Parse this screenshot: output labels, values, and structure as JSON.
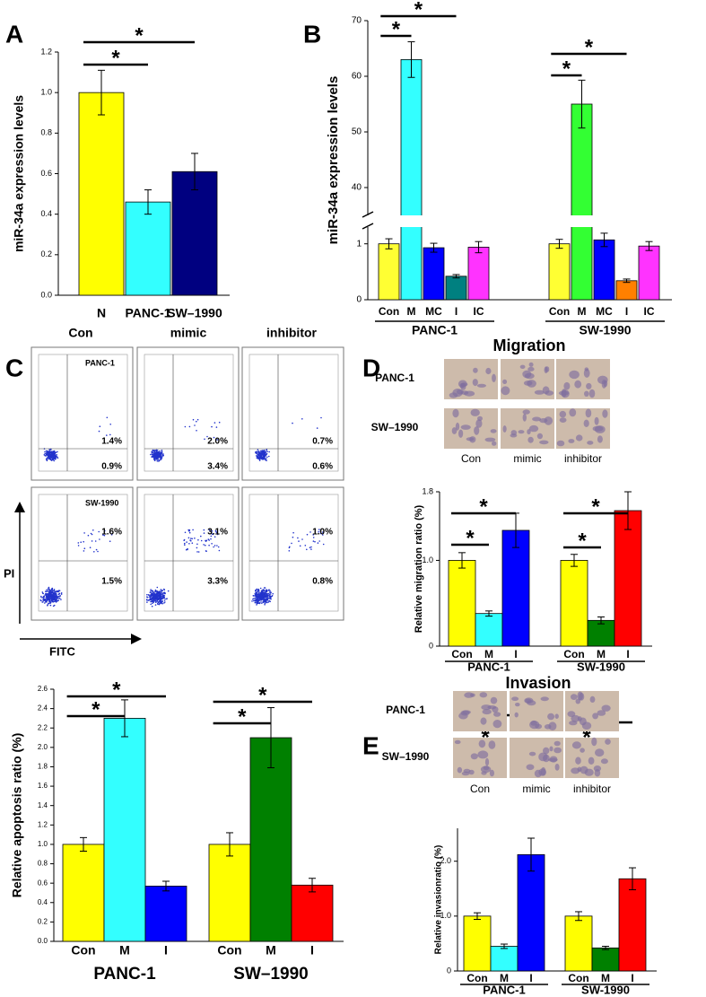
{
  "chart_data": [
    {
      "type": "bar",
      "label": "A",
      "ylabel": "miR-34a expression levels",
      "categories": [
        "N",
        "PANC-1",
        "SW–1990"
      ],
      "values": [
        1.0,
        0.46,
        0.61
      ],
      "errors": [
        0.11,
        0.06,
        0.09
      ],
      "colors": [
        "#ffff00",
        "#33ffff",
        "#000080"
      ],
      "ylim": [
        0,
        1.2
      ],
      "yticks": [
        {
          "value": 0,
          "label": "0.0"
        },
        0.2,
        0.4,
        0.6,
        0.8,
        {
          "value": 1,
          "label": "1.0"
        },
        1.2
      ],
      "brackets": [
        {
          "label": "*",
          "from": "N",
          "to": "PANC-1"
        },
        {
          "label": "*",
          "from": "N",
          "to": "SW–1990"
        }
      ]
    },
    {
      "type": "grouped_bar",
      "label": "B",
      "ylabel": "miR-34a expression levels",
      "categories": [
        "Con",
        "M",
        "MC",
        "I",
        "IC"
      ],
      "series": [
        {
          "name": "PANC-1",
          "values": [
            1.0,
            63,
            0.93,
            0.42,
            0.94
          ],
          "errors": [
            0.09,
            3.2,
            0.08,
            0.03,
            0.1
          ],
          "colors": [
            "#ffff33",
            "#33ffff",
            "#0000ff",
            "#008080",
            "#ff33ff"
          ]
        },
        {
          "name": "SW-1990",
          "values": [
            1.0,
            55,
            1.07,
            0.34,
            0.96
          ],
          "errors": [
            0.08,
            4.3,
            0.12,
            0.03,
            0.08
          ],
          "colors": [
            "#ffff33",
            "#33ff33",
            "#0000ff",
            "#ff8000",
            "#ff33ff"
          ]
        }
      ],
      "ylim": [
        0,
        70
      ],
      "ybreak": [
        1.3,
        35
      ],
      "yticks": [
        0,
        1,
        40,
        50,
        60,
        70
      ],
      "brackets": [
        {
          "label": "*",
          "group": "PANC-1",
          "from": "Con",
          "to": "M"
        },
        {
          "label": "*",
          "group": "PANC-1",
          "from": "Con",
          "to": "I"
        },
        {
          "label": "*",
          "group": "SW-1990",
          "from": "Con",
          "to": "M"
        },
        {
          "label": "*",
          "group": "SW-1990",
          "from": "Con",
          "to": "I"
        }
      ]
    },
    {
      "type": "grouped_bar",
      "label": "C",
      "ylabel": "Relative apoptosis ratio (%)",
      "categories": [
        "Con",
        "M",
        "I"
      ],
      "series": [
        {
          "name": "PANC-1",
          "values": [
            1.0,
            2.3,
            0.57
          ],
          "errors": [
            0.07,
            0.19,
            0.05
          ],
          "colors": [
            "#ffff00",
            "#33ffff",
            "#0000ff"
          ]
        },
        {
          "name": "SW–1990",
          "values": [
            1.0,
            2.1,
            0.58
          ],
          "errors": [
            0.12,
            0.31,
            0.07
          ],
          "colors": [
            "#ffff00",
            "#008000",
            "#ff0000"
          ]
        }
      ],
      "ylim": [
        0,
        2.6
      ],
      "yticks": [
        {
          "value": 0,
          "label": "0.0"
        },
        0.2,
        0.4,
        0.6,
        0.8,
        {
          "value": 1,
          "label": "1.0"
        },
        1.2,
        1.4,
        1.6,
        1.8,
        {
          "value": 2,
          "label": "2.0"
        },
        2.2,
        2.4,
        2.6
      ],
      "brackets": [
        {
          "label": "*",
          "group": "PANC-1",
          "from": "Con",
          "to": "M"
        },
        {
          "label": "*",
          "group": "PANC-1",
          "from": "Con",
          "to": "I"
        },
        {
          "label": "*",
          "group": "SW–1990",
          "from": "Con",
          "to": "M"
        },
        {
          "label": "*",
          "group": "SW–1990",
          "from": "Con",
          "to": "I"
        }
      ],
      "flow_cytometry": {
        "columns": [
          "Con",
          "mimic",
          "inhibitor"
        ],
        "y_axis": "PI",
        "x_axis": "FITC",
        "rows": [
          {
            "label": "PANC-1",
            "cells": [
              {
                "upper": "1.4%",
                "lower": "0.9%"
              },
              {
                "upper": "2.0%",
                "lower": "3.4%"
              },
              {
                "upper": "0.7%",
                "lower": "0.6%"
              }
            ]
          },
          {
            "label": "SW-1990",
            "cells": [
              {
                "upper": "1.6%",
                "lower": "1.5%"
              },
              {
                "upper": "3.1%",
                "lower": "3.3%"
              },
              {
                "upper": "1.0%",
                "lower": "0.8%"
              }
            ]
          }
        ]
      }
    },
    {
      "type": "grouped_bar",
      "label": "D",
      "title": "Migration",
      "ylabel": "Relative migration ratio (%)",
      "categories": [
        "Con",
        "M",
        "I"
      ],
      "series": [
        {
          "name": "PANC-1",
          "values": [
            1.0,
            0.38,
            1.35
          ],
          "errors": [
            0.09,
            0.03,
            0.2
          ],
          "colors": [
            "#ffff00",
            "#33ffff",
            "#0000ff"
          ]
        },
        {
          "name": "SW-1990",
          "values": [
            1.0,
            0.3,
            1.58
          ],
          "errors": [
            0.07,
            0.04,
            0.22
          ],
          "colors": [
            "#ffff00",
            "#008000",
            "#ff0000"
          ]
        }
      ],
      "ylim": [
        0,
        1.8
      ],
      "yticks": [
        0,
        {
          "value": 1,
          "label": "1.0"
        },
        1.8
      ],
      "brackets": [
        {
          "label": "*",
          "group": "PANC-1",
          "from": "Con",
          "to": "M"
        },
        {
          "label": "*",
          "group": "PANC-1",
          "from": "Con",
          "to": "I"
        },
        {
          "label": "*",
          "group": "SW-1990",
          "from": "Con",
          "to": "M"
        },
        {
          "label": "*",
          "group": "SW-1990",
          "from": "Con",
          "to": "I"
        }
      ],
      "micrographs": {
        "rows": [
          "PANC-1",
          "SW–1990"
        ],
        "columns": [
          "Con",
          "mimic",
          "inhibitor"
        ]
      }
    },
    {
      "type": "grouped_bar",
      "label": "E",
      "title": "Invasion",
      "ylabel": "Relative invasionratio (%)",
      "categories": [
        "Con",
        "M",
        "I"
      ],
      "series": [
        {
          "name": "PANC-1",
          "values": [
            1.0,
            0.45,
            2.12
          ],
          "errors": [
            0.06,
            0.04,
            0.3
          ],
          "colors": [
            "#ffff00",
            "#33ffff",
            "#0000ff"
          ]
        },
        {
          "name": "SW-1990",
          "values": [
            1.0,
            0.42,
            1.68
          ],
          "errors": [
            0.08,
            0.03,
            0.2
          ],
          "colors": [
            "#ffff00",
            "#008000",
            "#ff0000"
          ]
        }
      ],
      "ylim": [
        0,
        2.6
      ],
      "yticks": [
        0,
        {
          "value": 1,
          "label": "1.0"
        },
        {
          "value": 2,
          "label": "2.0"
        }
      ],
      "brackets": [
        {
          "label": "*",
          "group": "PANC-1",
          "from": "Con",
          "to": "M"
        },
        {
          "label": "*",
          "group": "PANC-1",
          "from": "Con",
          "to": "I"
        },
        {
          "label": "*",
          "group": "SW-1990",
          "from": "Con",
          "to": "M"
        },
        {
          "label": "*",
          "group": "SW-1990",
          "from": "Con",
          "to": "I"
        }
      ],
      "micrographs": {
        "rows": [
          "PANC-1",
          "SW–1990"
        ],
        "columns": [
          "Con",
          "mimic",
          "inhibitor"
        ]
      }
    }
  ]
}
